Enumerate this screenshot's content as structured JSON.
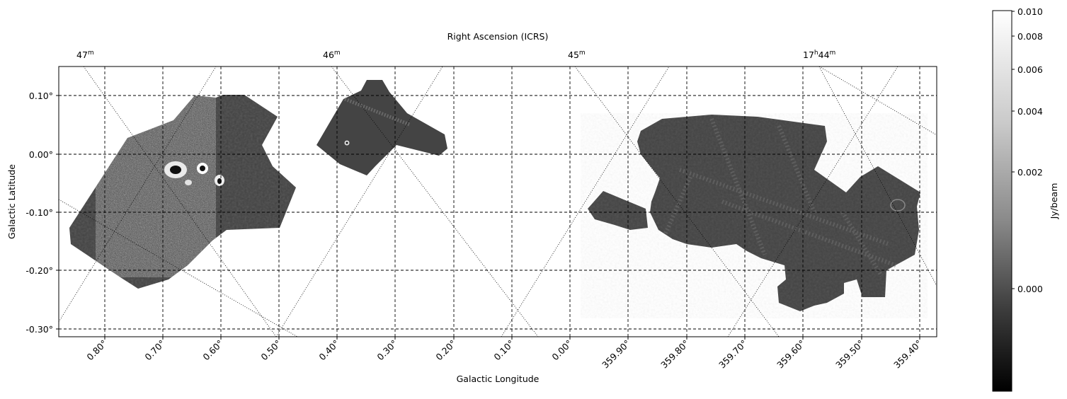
{
  "figure": {
    "top_axis_title": "Right Ascension (ICRS)",
    "bottom_axis_title": "Galactic Longitude",
    "left_axis_title": "Galactic Latitude",
    "colorbar_title": "Jy/beam"
  },
  "ra_ticks": [
    {
      "main": "47",
      "sup": "m"
    },
    {
      "main": "46",
      "sup": "m"
    },
    {
      "main": "45",
      "sup": "m"
    },
    {
      "main": "17",
      "sup": "h",
      "main2": "44",
      "sup2": "m"
    }
  ],
  "glon_ticks": [
    "0.80°",
    "0.70°",
    "0.60°",
    "0.50°",
    "0.40°",
    "0.30°",
    "0.20°",
    "0.10°",
    "0.00°",
    "359.90°",
    "359.80°",
    "359.70°",
    "359.60°",
    "359.50°",
    "359.40°"
  ],
  "glat_ticks": [
    "0.10°",
    "0.00°",
    "-0.10°",
    "-0.20°",
    "-0.30°"
  ],
  "colorbar_ticks": [
    "0.010",
    "0.008",
    "0.006",
    "0.004",
    "0.002",
    "0.000"
  ],
  "colors": {
    "background": "#ffffff",
    "field": "#424242",
    "grid": "#000000",
    "colorbar_low": "#000000",
    "colorbar_high": "#ffffff"
  },
  "colormap": "gray",
  "colorbar_scale": "nonlinear (asinh-like stretch)"
}
